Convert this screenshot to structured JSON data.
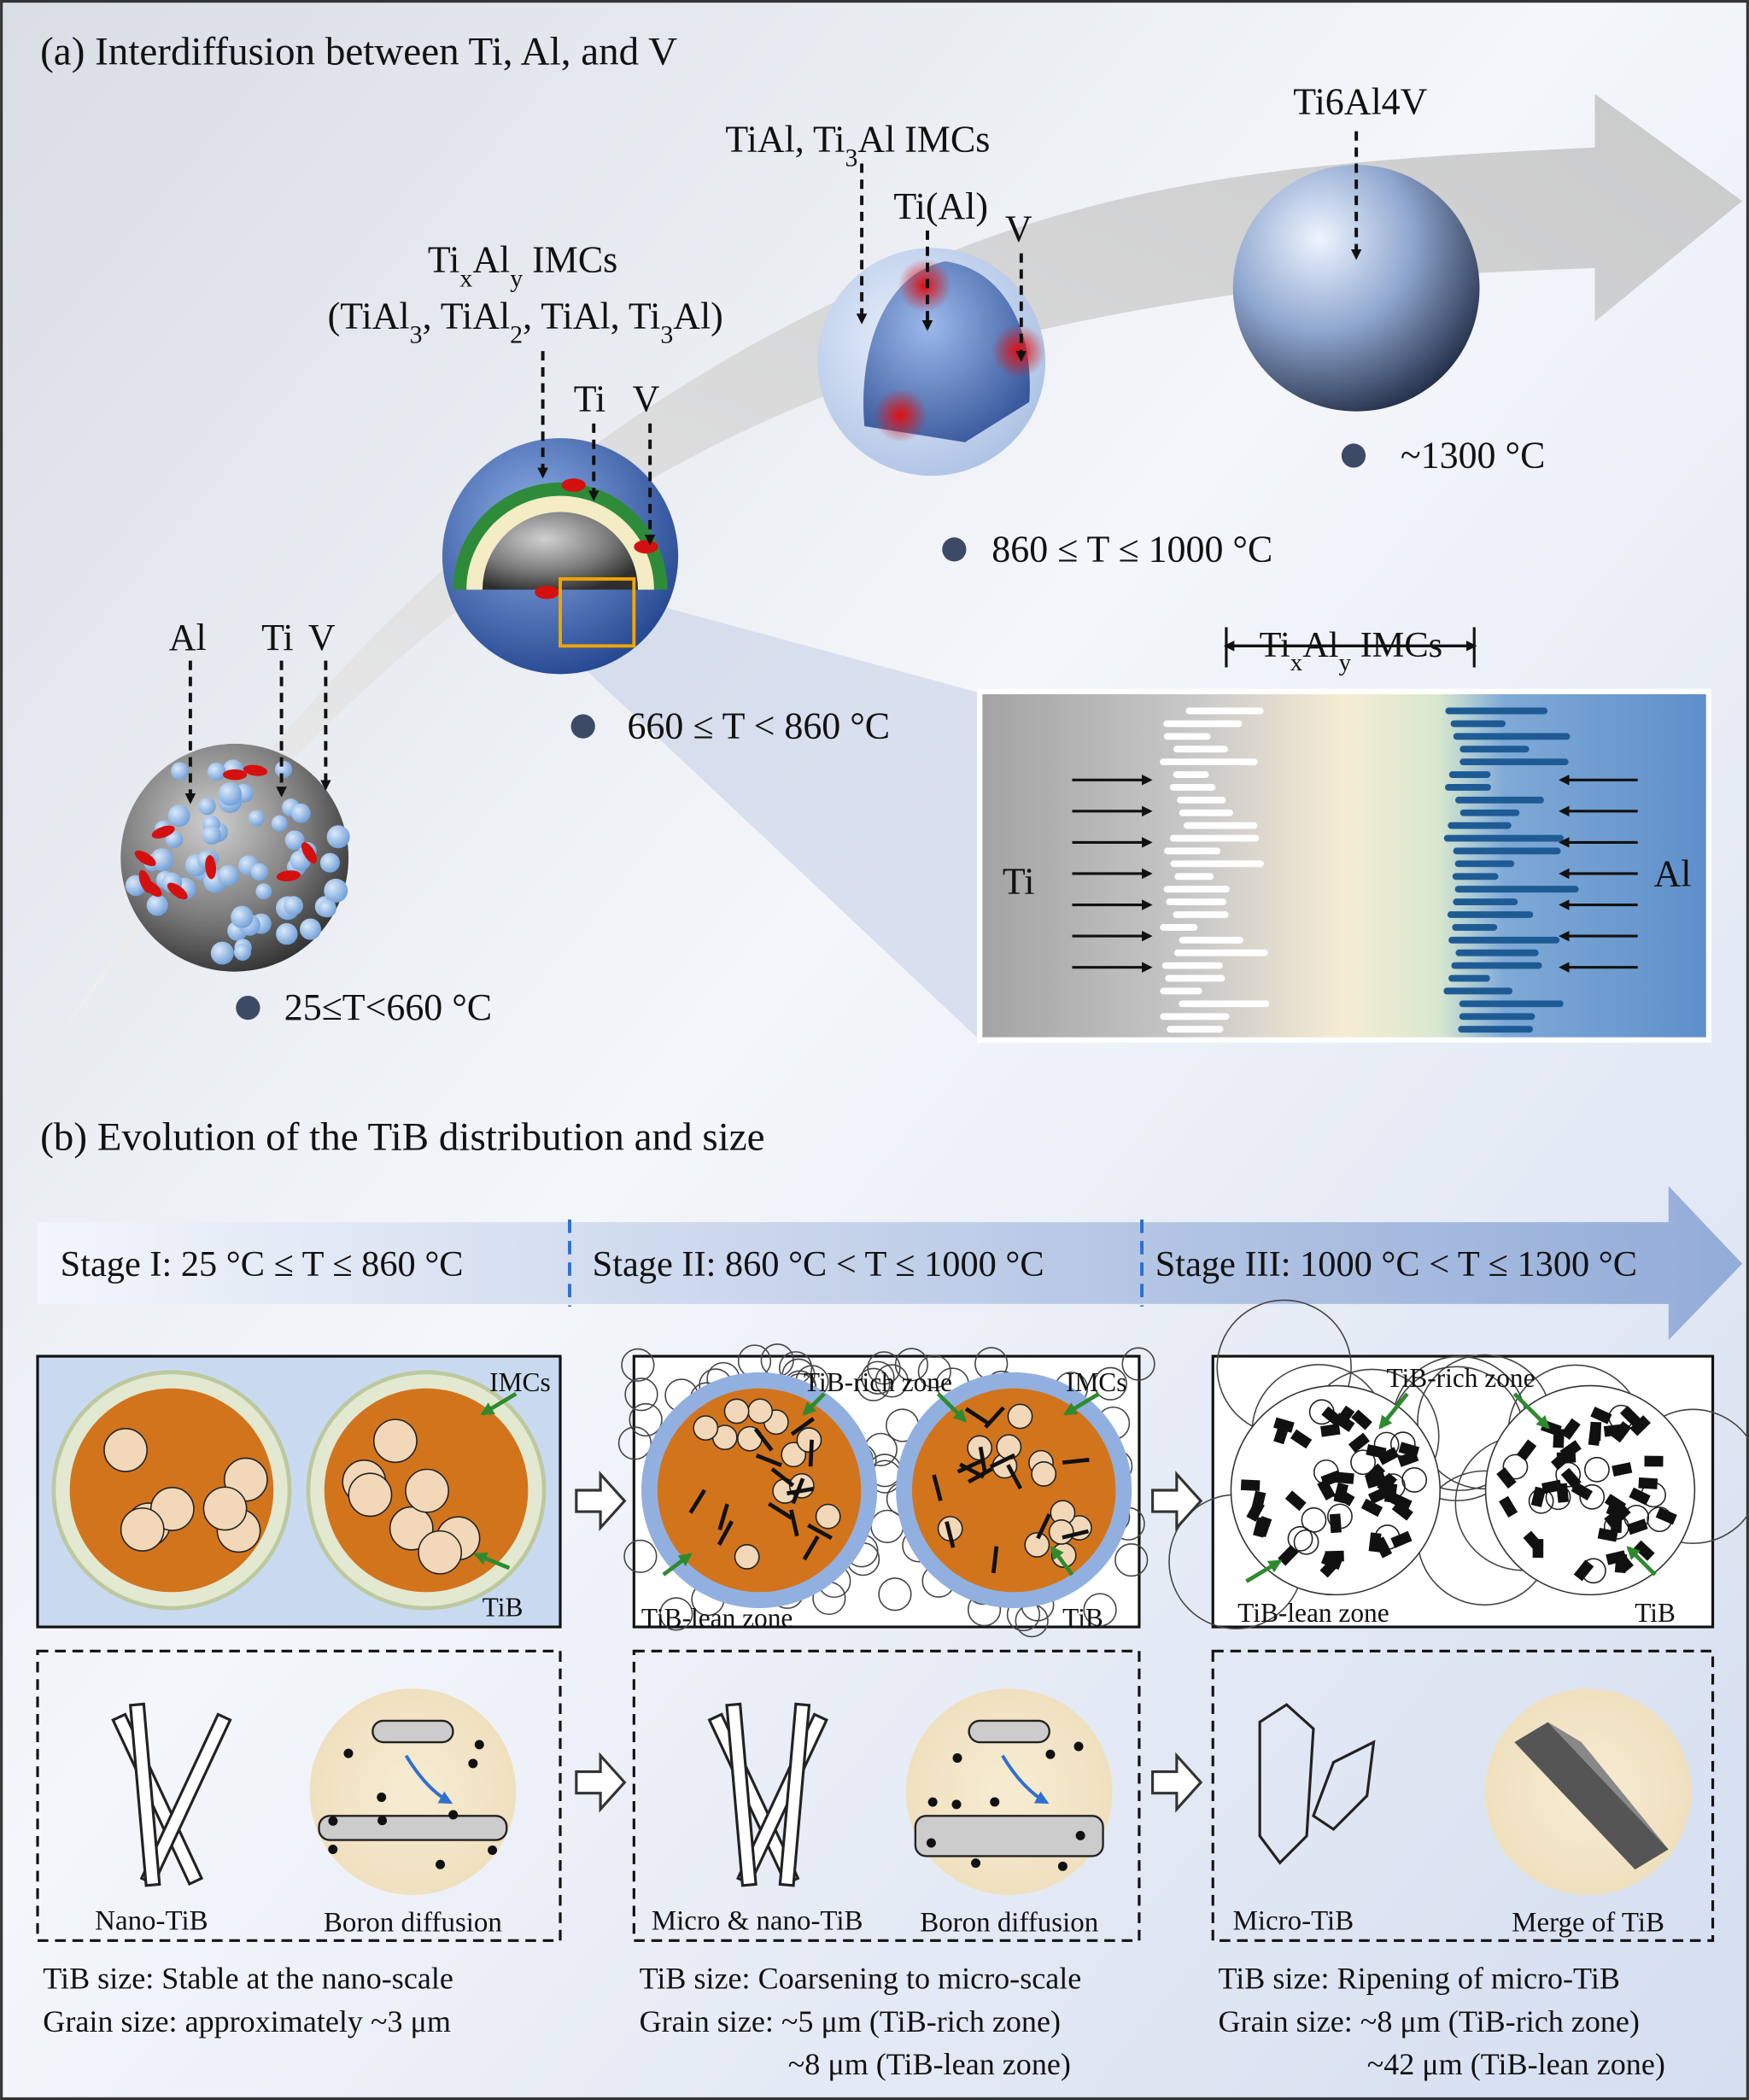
{
  "panel_a": {
    "title": "(a) Interdiffusion between Ti, Al, and V",
    "stage1": {
      "labels": [
        "Al",
        "Ti",
        "V"
      ],
      "temperature": "25≤T<660 °C"
    },
    "stage2": {
      "imcs": [
        "Ti",
        "x",
        "Al",
        "y",
        " IMCs"
      ],
      "phases": [
        "(TiAl",
        "3",
        ", TiAl",
        "2",
        ", TiAl, Ti",
        "3",
        "Al)"
      ],
      "labels": [
        "Ti",
        "V"
      ],
      "temperature": "660 ≤ T < 860 °C"
    },
    "stage3": {
      "imcs": [
        "TiAl, Ti",
        "3",
        "Al IMCs"
      ],
      "labels": [
        "Ti(Al)",
        "V"
      ],
      "temperature": "860 ≤ T ≤ 1000 °C"
    },
    "stage4": {
      "label": "Ti6Al4V",
      "temperature": "~1300 °C"
    },
    "inset": {
      "imcs": [
        "Ti",
        "x",
        "Al",
        "y",
        " IMCs"
      ],
      "left": "Ti",
      "right": "Al"
    }
  },
  "panel_b": {
    "title": "(b) Evolution of the TiB distribution and size",
    "stages": [
      {
        "name": "Stage I: 25 °C ≤ T ≤ 860 °C",
        "top_labels": [
          "IMCs",
          "TiB"
        ],
        "left_caption": "Nano-TiB",
        "right_caption": "Boron diffusion",
        "summary": [
          "TiB size: Stable at the nano-scale",
          "Grain size: approximately ~3 μm"
        ]
      },
      {
        "name": "Stage II: 860 °C < T ≤ 1000 °C",
        "top_labels": [
          "TiB-rich zone",
          "IMCs",
          "TiB-lean zone",
          "TiB"
        ],
        "left_caption": "Micro & nano-TiB",
        "right_caption": "Boron diffusion",
        "summary": [
          "TiB size: Coarsening to micro-scale",
          "Grain size: ~5 μm (TiB-rich zone)",
          "~8 μm (TiB-lean zone)"
        ]
      },
      {
        "name": "Stage III: 1000 °C < T ≤ 1300 °C",
        "top_labels": [
          "TiB-rich zone",
          "TiB-lean zone",
          "TiB"
        ],
        "left_caption": "Micro-TiB",
        "right_caption": "Merge of TiB",
        "summary": [
          "TiB size: Ripening of micro-TiB",
          "Grain size: ~8 μm (TiB-rich zone)",
          "~42 μm (TiB-lean zone)"
        ]
      }
    ]
  }
}
